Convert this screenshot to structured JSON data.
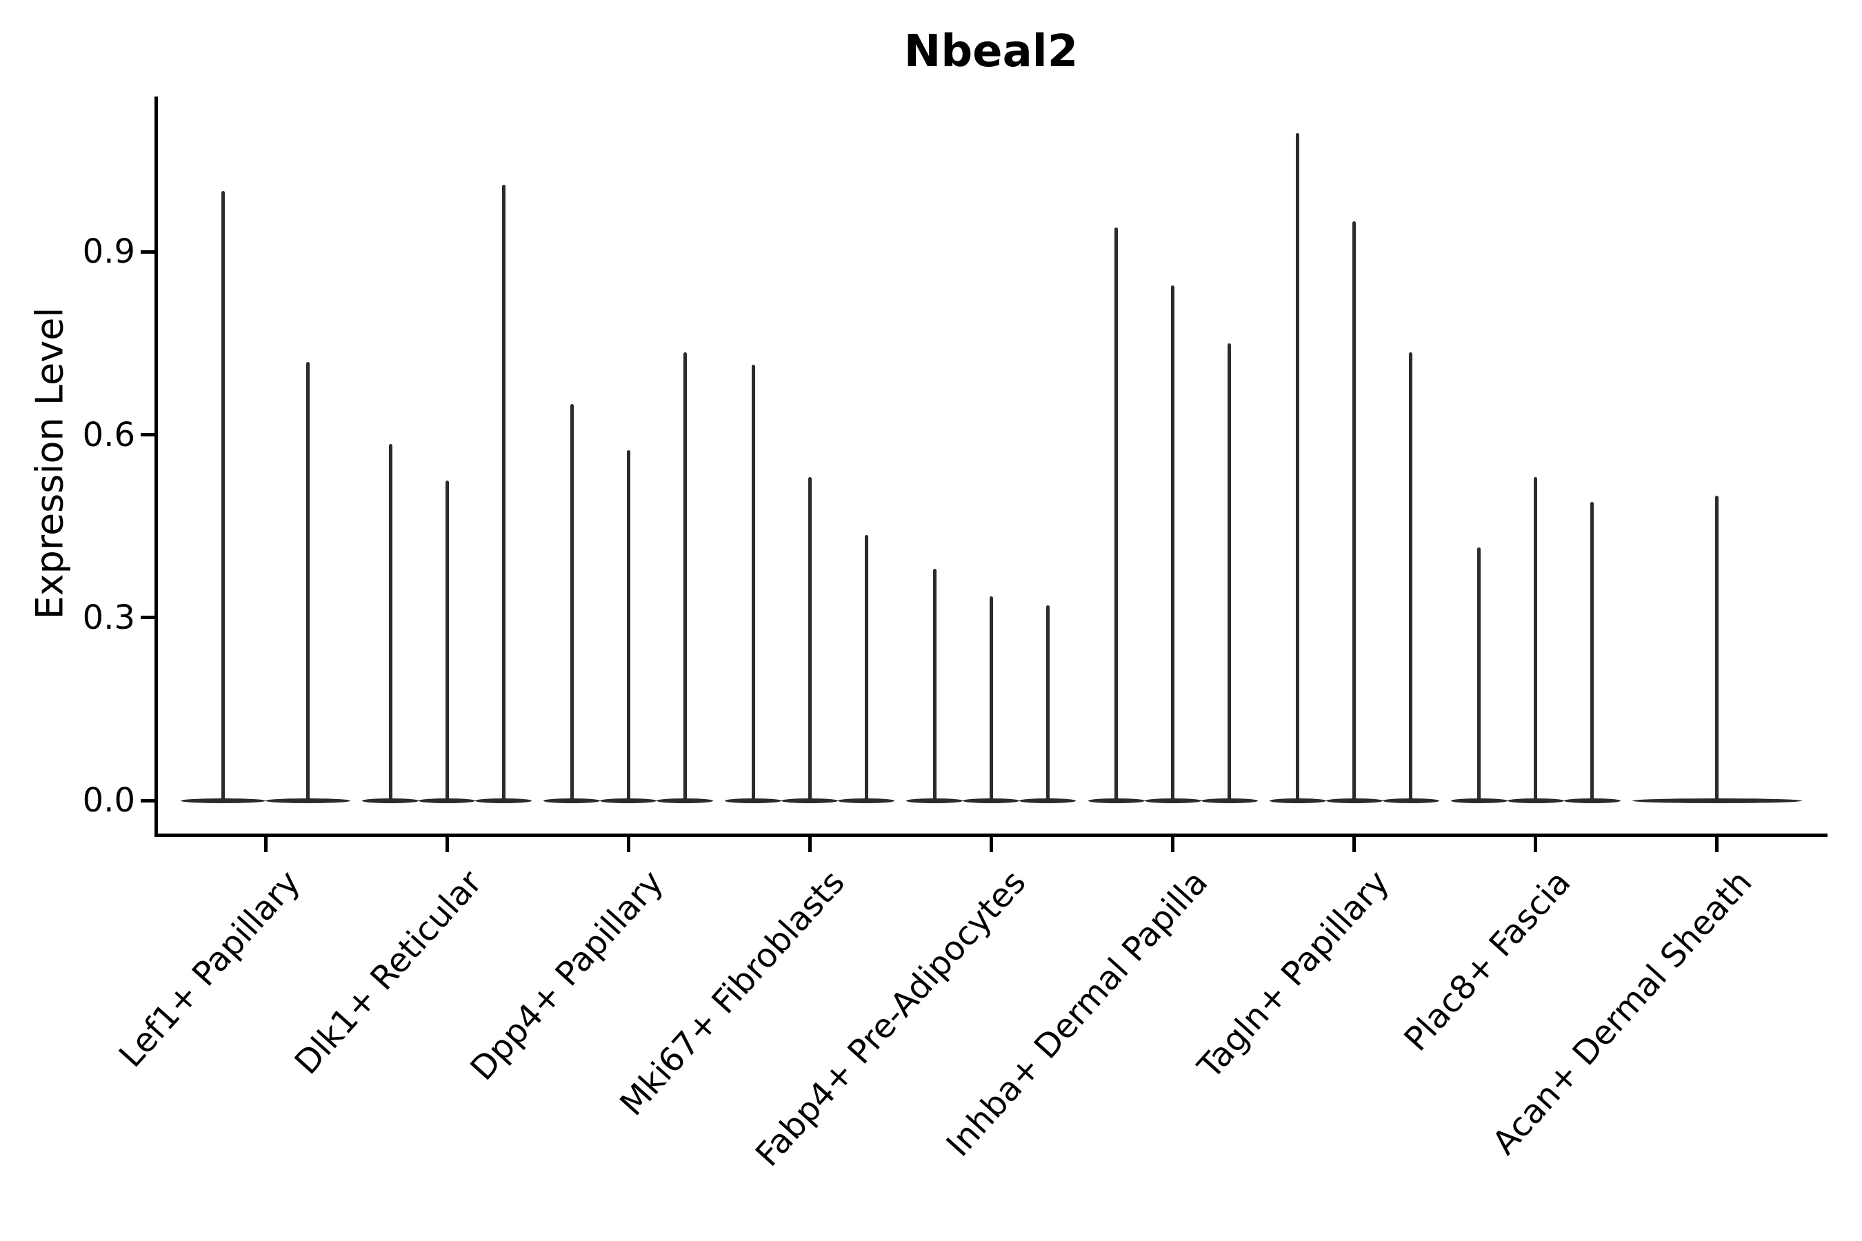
{
  "chart_data": {
    "type": "violin",
    "title": "Nbeal2",
    "xlabel": "",
    "ylabel": "Expression Level",
    "ytick_labels": [
      "0.0",
      "0.3",
      "0.6",
      "0.9"
    ],
    "ytick_values": [
      0.0,
      0.3,
      0.6,
      0.9
    ],
    "ylim": [
      -0.057,
      1.155
    ],
    "grid": false,
    "legend": "none",
    "line_color": "#2b2b2b",
    "axis_color": "#000000",
    "groups": [
      {
        "label": "Lef1+ Papillary",
        "violin_max": [
          1.0,
          0.72
        ]
      },
      {
        "label": "Dlk1+ Reticular",
        "violin_max": [
          0.585,
          0.525,
          1.01
        ]
      },
      {
        "label": "Dpp4+ Papillary",
        "violin_max": [
          0.65,
          0.575,
          0.735
        ]
      },
      {
        "label": "Mki67+ Fibroblasts",
        "violin_max": [
          0.715,
          0.53,
          0.435
        ]
      },
      {
        "label": "Fabp4+ Pre-Adipocytes",
        "violin_max": [
          0.38,
          0.335,
          0.32
        ]
      },
      {
        "label": "Inhba+ Dermal Papilla",
        "violin_max": [
          0.94,
          0.845,
          0.75
        ]
      },
      {
        "label": "Tagln+ Papillary",
        "violin_max": [
          1.095,
          0.95,
          0.735
        ]
      },
      {
        "label": "Plac8+ Fascia",
        "violin_max": [
          0.415,
          0.53,
          0.49
        ]
      },
      {
        "label": "Acan+ Dermal Sheath",
        "violin_max": [
          0.5
        ]
      }
    ]
  }
}
